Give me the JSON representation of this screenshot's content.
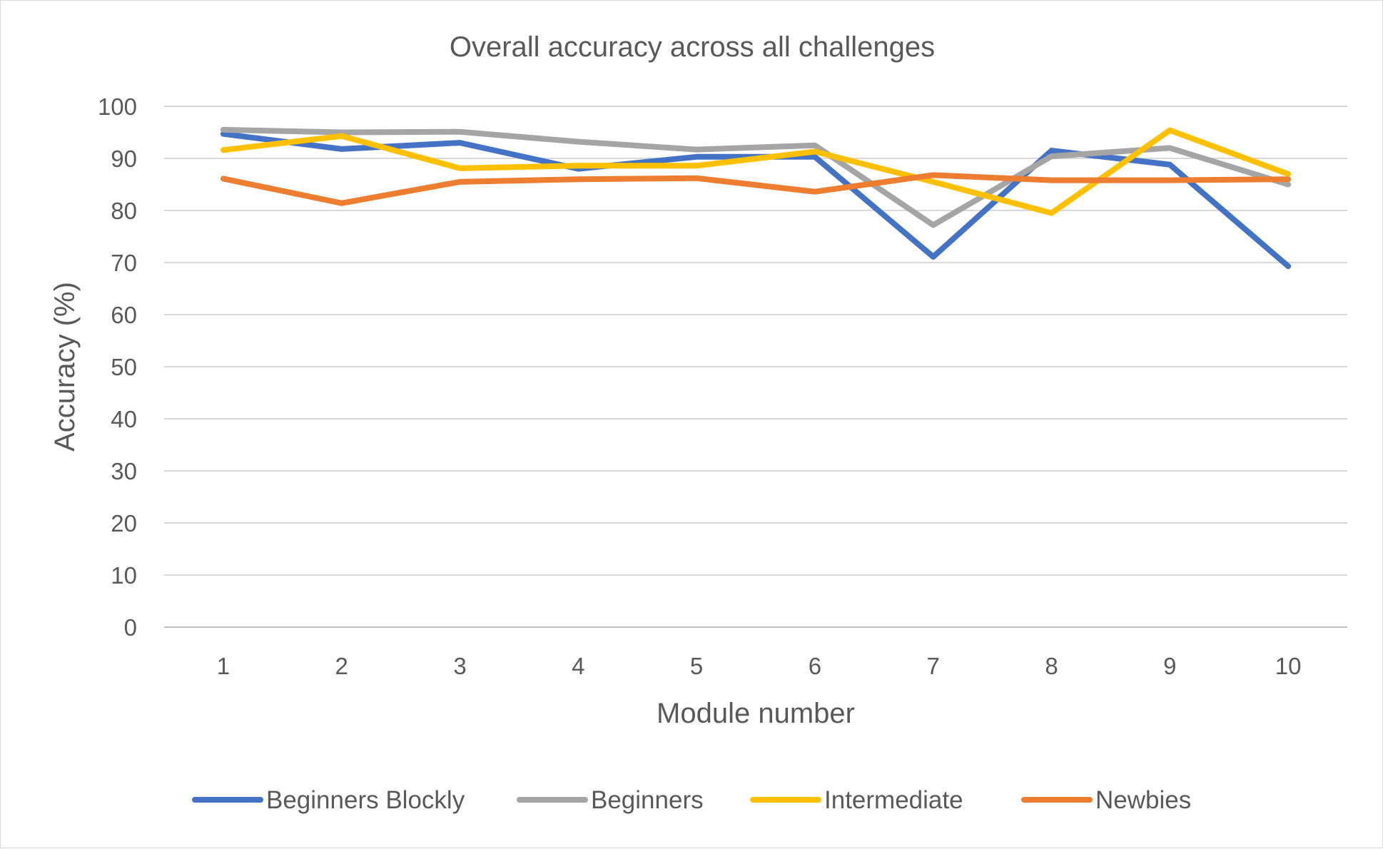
{
  "chart_data": {
    "type": "line",
    "title": "Overall accuracy across all challenges",
    "xlabel": "Module number",
    "ylabel": "Accuracy (%)",
    "categories": [
      "1",
      "2",
      "3",
      "4",
      "5",
      "6",
      "7",
      "8",
      "9",
      "10"
    ],
    "ylim": [
      0,
      100
    ],
    "yticks": [
      "0",
      "10",
      "20",
      "30",
      "40",
      "50",
      "60",
      "70",
      "80",
      "90",
      "100"
    ],
    "grid": true,
    "legend_position": "bottom",
    "series": [
      {
        "name": "Beginners Blockly",
        "color": "#4472C4",
        "values": [
          94.7,
          91.8,
          93.0,
          88.0,
          90.3,
          90.3,
          71.1,
          91.5,
          88.8,
          69.3
        ]
      },
      {
        "name": "Beginners",
        "color": "#A5A5A5",
        "values": [
          95.5,
          95.0,
          95.1,
          93.2,
          91.7,
          92.5,
          77.2,
          90.4,
          92.0,
          85.0
        ]
      },
      {
        "name": "Intermediate",
        "color": "#FFC000",
        "values": [
          91.6,
          94.3,
          88.1,
          88.6,
          88.6,
          91.3,
          85.5,
          79.5,
          95.4,
          87.0
        ]
      },
      {
        "name": "Newbies",
        "color": "#ED7D31",
        "values": [
          86.1,
          81.4,
          85.5,
          86.0,
          86.2,
          83.6,
          86.8,
          85.8,
          85.8,
          86.0
        ]
      }
    ]
  }
}
